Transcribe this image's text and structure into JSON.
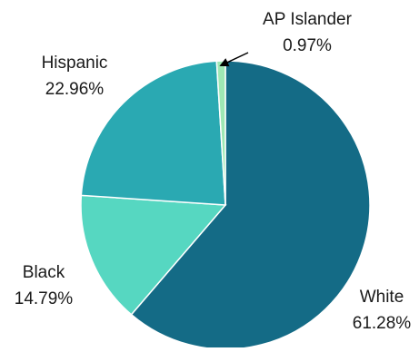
{
  "chart_data": {
    "type": "pie",
    "title": "",
    "slices": [
      {
        "label": "White",
        "value": 61.28,
        "display": "61.28%",
        "color": "#146b86"
      },
      {
        "label": "Black",
        "value": 14.79,
        "display": "14.79%",
        "color": "#56d7c1"
      },
      {
        "label": "Hispanic",
        "value": 22.96,
        "display": "22.96%",
        "color": "#2aa9b2"
      },
      {
        "label": "AP Islander",
        "value": 0.97,
        "display": "0.97%",
        "color": "#9ee8b4"
      }
    ],
    "start_angle_deg": 0,
    "direction": "clockwise",
    "slice_border_color": "#ffffff",
    "leader_line_color": "#000000"
  }
}
